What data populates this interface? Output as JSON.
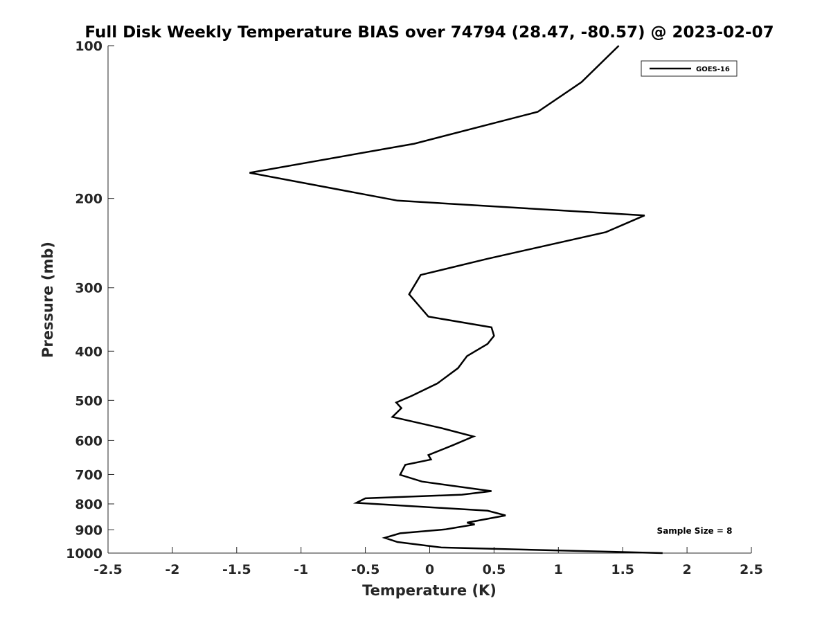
{
  "chart_data": {
    "type": "line",
    "title": "Full Disk Weekly Temperature BIAS over 74794 (28.47, -80.57) @ 2023-02-07",
    "xlabel": "Temperature (K)",
    "ylabel": "Pressure (mb)",
    "xlim": [
      -2.5,
      2.5
    ],
    "ylim": [
      100,
      1000
    ],
    "y_scale": "log",
    "y_reversed": true,
    "grid": false,
    "x_ticks": [
      "-2.5",
      "-2",
      "-1.5",
      "-1",
      "-0.5",
      "0",
      "0.5",
      "1",
      "1.5",
      "2",
      "2.5"
    ],
    "y_ticks": [
      "100",
      "200",
      "300",
      "400",
      "500",
      "600",
      "700",
      "800",
      "900",
      "1000"
    ],
    "legend": {
      "position": "top-right",
      "entries": [
        "GOES-16"
      ]
    },
    "annotation": "Sample Size = 8",
    "series": [
      {
        "name": "GOES-16",
        "color": "#000000",
        "x": [
          1.47,
          1.18,
          0.84,
          -0.12,
          -1.4,
          -0.25,
          1.67,
          1.37,
          0.45,
          -0.07,
          -0.16,
          -0.01,
          0.48,
          0.5,
          0.45,
          0.29,
          0.22,
          0.06,
          -0.14,
          -0.26,
          -0.22,
          -0.29,
          0.09,
          0.34,
          0.18,
          -0.01,
          0.01,
          -0.19,
          -0.23,
          -0.06,
          0.48,
          0.25,
          -0.5,
          -0.57,
          0.45,
          0.59,
          0.29,
          0.35,
          0.12,
          -0.23,
          -0.35,
          -0.25,
          0.09,
          1.81
        ],
        "y": [
          100,
          118,
          135,
          156,
          178,
          202,
          216,
          233,
          263,
          283,
          309,
          342,
          359,
          373,
          387,
          409,
          432,
          463,
          490,
          505,
          518,
          539,
          567,
          589,
          613,
          641,
          654,
          670,
          701,
          723,
          755,
          767,
          780,
          796,
          825,
          843,
          871,
          878,
          898,
          914,
          933,
          951,
          975,
          1000
        ]
      }
    ]
  }
}
